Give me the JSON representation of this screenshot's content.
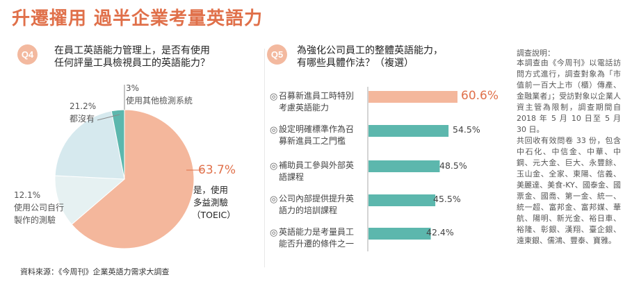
{
  "headline": "升遷擢用 過半企業考量英語力",
  "colors": {
    "accent": "#e0704a",
    "salmon": "#f4b79c",
    "teal": "#5cb7ad",
    "light_blue": "#d6e9ee",
    "pale_blue": "#e6f1f2",
    "badge": "#f3b99f"
  },
  "q4": {
    "badge": "Q4",
    "question": "在員工英語能力管理上，是否有使用\n任何評量工具檢視員工的英語能力？"
  },
  "q5": {
    "badge": "Q5",
    "question": "為強化公司員工的整體英語能力，\n有哪些具體作法？（複選）"
  },
  "pie_labels": {
    "toeic_pct": "63.7%",
    "toeic_label_1": "是，使用",
    "toeic_label_2": "多益測驗",
    "toeic_label_3": "（TOEIC）",
    "none_pct": "21.2%",
    "none_label": "都沒有",
    "other_pct": "3%",
    "other_label": "使用其他檢測系統",
    "inhouse_pct": "12.1%",
    "inhouse_label_1": "使用公司自行",
    "inhouse_label_2": "製作的測驗"
  },
  "bar_labels": {
    "b1_line1": "召募新進員工時特別",
    "b1_line2": "考慮英語能力",
    "b1_value": "60.6%",
    "b2_line1": "設定明確標準作為召",
    "b2_line2": "募新進員工之門檻",
    "b2_value": "54.5%",
    "b3_line1": "補助員工參與外部英",
    "b3_line2": "語課程",
    "b3_value": "48.5%",
    "b4_line1": "公司內部提供提升英",
    "b4_line2": "語力的培訓課程",
    "b4_value": "45.5%",
    "b5_line1": "英語能力是考量員工",
    "b5_line2": "能否升遷的條件之一",
    "b5_value": "42.4%"
  },
  "chart_data": [
    {
      "type": "pie",
      "title": "在員工英語能力管理上，是否有使用任何評量工具檢視員工的英語能力？",
      "slices": [
        {
          "label": "是，使用多益測驗（TOEIC）",
          "value": 63.7,
          "color": "#f4b79c"
        },
        {
          "label": "使用公司自行製作的測驗",
          "value": 12.1,
          "color": "#e6f1f2"
        },
        {
          "label": "都沒有",
          "value": 21.2,
          "color": "#d6e9ee"
        },
        {
          "label": "使用其他檢測系統",
          "value": 3,
          "color": "#5cb7ad"
        }
      ]
    },
    {
      "type": "bar",
      "orientation": "horizontal",
      "title": "為強化公司員工的整體英語能力，有哪些具體作法？（複選）",
      "categories": [
        "召募新進員工時特別考慮英語能力",
        "設定明確標準作為召募新進員工之門檻",
        "補助員工參與外部英語課程",
        "公司內部提供提升英語力的培訓課程",
        "英語能力是考量員工能否升遷的條件之一"
      ],
      "values": [
        60.6,
        54.5,
        48.5,
        45.5,
        42.4
      ],
      "xlim": [
        0,
        60.6
      ],
      "unit": "%",
      "colors": [
        "#f4b79c",
        "#5cb7ad",
        "#5cb7ad",
        "#5cb7ad",
        "#5cb7ad"
      ]
    }
  ],
  "note": {
    "title": "調查說明：",
    "p1": "本調查由《今周刊》以電話訪問方式進行，調查對象為「市值前一百大上市（櫃）傳產、金融業者」；受訪對象以企業人資主管為限制，調查期間自 2018 年 5 月 10 日至 5 月 30 日。",
    "p2": "共回收有效問卷 33 份，包含中石化、中信金、中華、中鋼、元大金、巨大、永豐餘、玉山金、全家、東陽、信義、美麗達、美食-KY、國泰金、國票金、國喬、第一金、統一、統一超、富邦金、富邦媒、華航、陽明、新光金、裕日車、裕隆、彰銀、漢翔、臺企銀、遠東銀、儒鴻、豐泰、寶雅。"
  },
  "source": "資料來源：《今周刊》企業英語力需求大調查"
}
